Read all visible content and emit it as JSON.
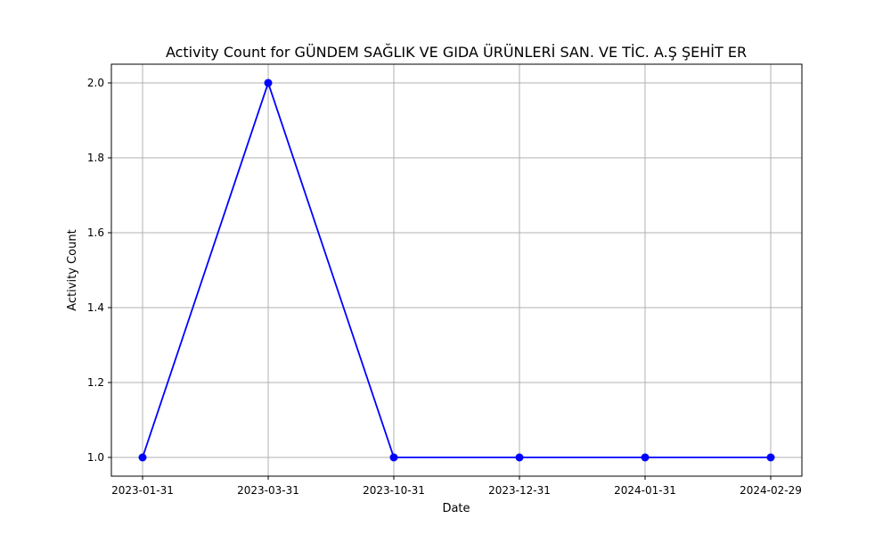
{
  "chart_data": {
    "type": "line",
    "title": "Activity Count for GÜNDEM SAĞLIK VE GIDA ÜRÜNLERİ SAN. VE TİC. A.Ş ŞEHİT ER",
    "xlabel": "Date",
    "ylabel": "Activity Count",
    "categories": [
      "2023-01-31",
      "2023-03-31",
      "2023-10-31",
      "2023-12-31",
      "2024-01-31",
      "2024-02-29"
    ],
    "series": [
      {
        "values": [
          1,
          2,
          1,
          1,
          1,
          1
        ],
        "color": "#0000ff",
        "marker": "circle"
      }
    ],
    "ylim": [
      0.95,
      2.05
    ],
    "yticks": [
      1.0,
      1.2,
      1.4,
      1.6,
      1.8,
      2.0
    ],
    "ytick_labels": [
      "1.0",
      "1.2",
      "1.4",
      "1.6",
      "1.8",
      "2.0"
    ],
    "grid": true,
    "legend": "none"
  }
}
